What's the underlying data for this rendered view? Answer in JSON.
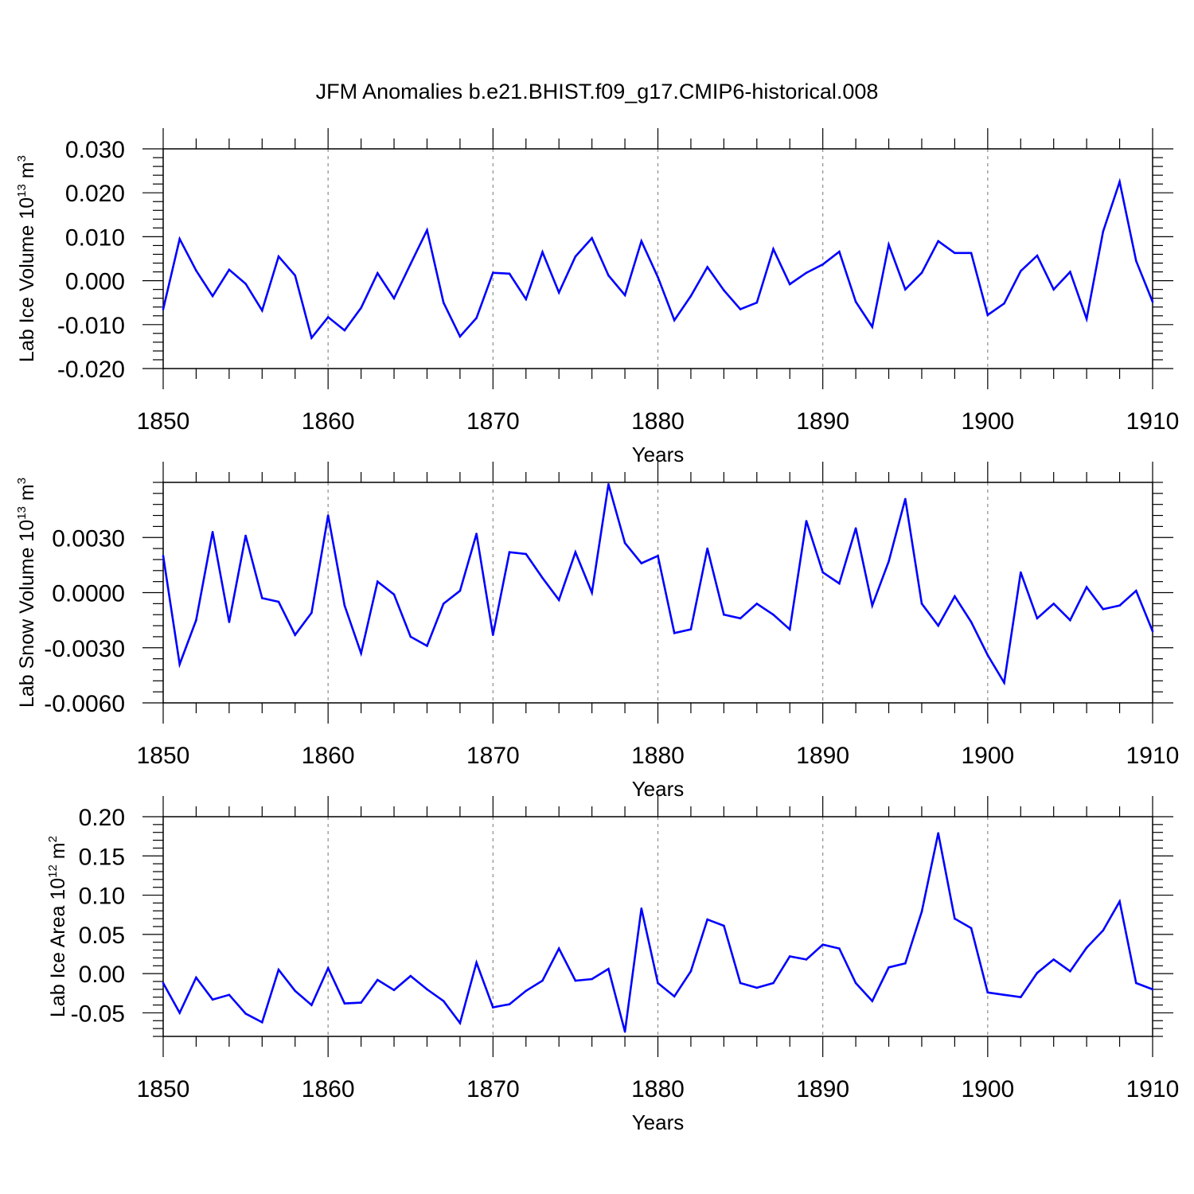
{
  "figure_title": "JFM Anomalies b.e21.BHIST.f09_g17.CMIP6-historical.008",
  "colors": {
    "line": "#0000ff",
    "axis": "#000000",
    "grid": "#8c8c8c"
  },
  "chart_data": [
    {
      "type": "line",
      "name": "ice-volume",
      "xlabel": "Years",
      "ylabel": {
        "prefix": "Lab Ice Volume 10",
        "exp": "13",
        "unit": " m",
        "unit_exp": "3"
      },
      "xlim": [
        1850,
        1910
      ],
      "ylim": [
        -0.02,
        0.03
      ],
      "xticks": [
        1850,
        1860,
        1870,
        1880,
        1890,
        1900,
        1910
      ],
      "xtick_labels": [
        "1850",
        "1860",
        "1870",
        "1880",
        "1890",
        "1900",
        "1910"
      ],
      "yticks": [
        -0.02,
        -0.01,
        0.0,
        0.01,
        0.02,
        0.03
      ],
      "ytick_labels": [
        "-0.020",
        "-0.010",
        "0.000",
        "0.010",
        "0.020",
        "0.030"
      ],
      "x": [
        1850,
        1851,
        1852,
        1853,
        1854,
        1855,
        1856,
        1857,
        1858,
        1859,
        1860,
        1861,
        1862,
        1863,
        1864,
        1865,
        1866,
        1867,
        1868,
        1869,
        1870,
        1871,
        1872,
        1873,
        1874,
        1875,
        1876,
        1877,
        1878,
        1879,
        1880,
        1881,
        1882,
        1883,
        1884,
        1885,
        1886,
        1887,
        1888,
        1889,
        1890,
        1891,
        1892,
        1893,
        1894,
        1895,
        1896,
        1897,
        1898,
        1899,
        1900,
        1901,
        1902,
        1903,
        1904,
        1905,
        1906,
        1907,
        1908,
        1909,
        1910
      ],
      "values": [
        -0.0065,
        0.0095,
        0.0023,
        -0.0035,
        0.0025,
        -0.0007,
        -0.0068,
        0.0055,
        0.0012,
        -0.013,
        -0.0083,
        -0.0113,
        -0.0062,
        0.0017,
        -0.004,
        0.0038,
        0.0115,
        -0.005,
        -0.0127,
        -0.0085,
        0.0018,
        0.0016,
        -0.0042,
        0.0065,
        -0.0027,
        0.0055,
        0.0097,
        0.0012,
        -0.0033,
        0.009,
        0.0008,
        -0.009,
        -0.0035,
        0.0031,
        -0.0022,
        -0.0065,
        -0.005,
        0.0072,
        -0.0008,
        0.0018,
        0.0037,
        0.0066,
        -0.0048,
        -0.0105,
        0.0082,
        -0.002,
        0.0018,
        0.009,
        0.0063,
        0.0063,
        -0.0078,
        -0.0052,
        0.0022,
        0.0057,
        -0.002,
        0.002,
        -0.0087,
        0.0112,
        0.0225,
        0.0045,
        -0.0048
      ]
    },
    {
      "type": "line",
      "name": "snow-volume",
      "xlabel": "Years",
      "ylabel": {
        "prefix": "Lab Snow Volume 10",
        "exp": "13",
        "unit": " m",
        "unit_exp": "3"
      },
      "xlim": [
        1850,
        1910
      ],
      "ylim": [
        -0.006,
        0.006
      ],
      "xticks": [
        1850,
        1860,
        1870,
        1880,
        1890,
        1900,
        1910
      ],
      "xtick_labels": [
        "1850",
        "1860",
        "1870",
        "1880",
        "1890",
        "1900",
        "1910"
      ],
      "yticks": [
        -0.006,
        -0.003,
        0.0,
        0.003
      ],
      "ytick_labels": [
        "-0.0060",
        "-0.0030",
        "0.0000",
        "0.0030"
      ],
      "x": [
        1850,
        1851,
        1852,
        1853,
        1854,
        1855,
        1856,
        1857,
        1858,
        1859,
        1860,
        1861,
        1862,
        1863,
        1864,
        1865,
        1866,
        1867,
        1868,
        1869,
        1870,
        1871,
        1872,
        1873,
        1874,
        1875,
        1876,
        1877,
        1878,
        1879,
        1880,
        1881,
        1882,
        1883,
        1884,
        1885,
        1886,
        1887,
        1888,
        1889,
        1890,
        1891,
        1892,
        1893,
        1894,
        1895,
        1896,
        1897,
        1898,
        1899,
        1900,
        1901,
        1902,
        1903,
        1904,
        1905,
        1906,
        1907,
        1908,
        1909,
        1910
      ],
      "values": [
        0.002,
        -0.0039,
        -0.0015,
        0.0033,
        -0.0016,
        0.0031,
        -0.0003,
        -0.0005,
        -0.0023,
        -0.0011,
        0.0042,
        -0.0007,
        -0.0033,
        0.0006,
        -0.0001,
        -0.0024,
        -0.0029,
        -0.0006,
        0.0001,
        0.0032,
        -0.0023,
        0.0022,
        0.0021,
        0.0008,
        -0.0004,
        0.0022,
        0.0,
        0.0059,
        0.0027,
        0.0016,
        0.002,
        -0.0022,
        -0.002,
        0.0024,
        -0.0012,
        -0.0014,
        -0.0006,
        -0.0012,
        -0.002,
        0.0039,
        0.0011,
        0.0005,
        0.0035,
        -0.0007,
        0.0017,
        0.0051,
        -0.0006,
        -0.0018,
        -0.0002,
        -0.0016,
        -0.0034,
        -0.0049,
        0.0011,
        -0.0014,
        -0.0006,
        -0.0015,
        0.0003,
        -0.0009,
        -0.0007,
        0.0001,
        -0.0021
      ]
    },
    {
      "type": "line",
      "name": "ice-area",
      "xlabel": "Years",
      "ylabel": {
        "prefix": "Lab Ice Area 10",
        "exp": "12",
        "unit": " m",
        "unit_exp": "2"
      },
      "xlim": [
        1850,
        1910
      ],
      "ylim": [
        -0.08,
        0.2
      ],
      "xticks": [
        1850,
        1860,
        1870,
        1880,
        1890,
        1900,
        1910
      ],
      "xtick_labels": [
        "1850",
        "1860",
        "1870",
        "1880",
        "1890",
        "1900",
        "1910"
      ],
      "yticks": [
        -0.05,
        0.0,
        0.05,
        0.1,
        0.15,
        0.2
      ],
      "ytick_labels": [
        "-0.05",
        "0.00",
        "0.05",
        "0.10",
        "0.15",
        "0.20"
      ],
      "x": [
        1850,
        1851,
        1852,
        1853,
        1854,
        1855,
        1856,
        1857,
        1858,
        1859,
        1860,
        1861,
        1862,
        1863,
        1864,
        1865,
        1866,
        1867,
        1868,
        1869,
        1870,
        1871,
        1872,
        1873,
        1874,
        1875,
        1876,
        1877,
        1878,
        1879,
        1880,
        1881,
        1882,
        1883,
        1884,
        1885,
        1886,
        1887,
        1888,
        1889,
        1890,
        1891,
        1892,
        1893,
        1894,
        1895,
        1896,
        1897,
        1898,
        1899,
        1900,
        1901,
        1902,
        1903,
        1904,
        1905,
        1906,
        1907,
        1908,
        1909,
        1910
      ],
      "values": [
        -0.012,
        -0.05,
        -0.005,
        -0.033,
        -0.027,
        -0.051,
        -0.062,
        0.005,
        -0.022,
        -0.04,
        0.007,
        -0.038,
        -0.037,
        -0.008,
        -0.021,
        -0.003,
        -0.02,
        -0.035,
        -0.063,
        0.014,
        -0.043,
        -0.039,
        -0.022,
        -0.009,
        0.032,
        -0.009,
        -0.007,
        0.006,
        -0.074,
        0.083,
        -0.012,
        -0.029,
        0.003,
        0.069,
        0.061,
        -0.012,
        -0.018,
        -0.012,
        0.022,
        0.018,
        0.037,
        0.032,
        -0.012,
        -0.035,
        0.008,
        0.013,
        0.079,
        0.179,
        0.07,
        0.058,
        -0.024,
        -0.027,
        -0.03,
        0.001,
        0.018,
        0.003,
        0.033,
        0.055,
        0.092,
        -0.012,
        -0.02
      ]
    }
  ]
}
